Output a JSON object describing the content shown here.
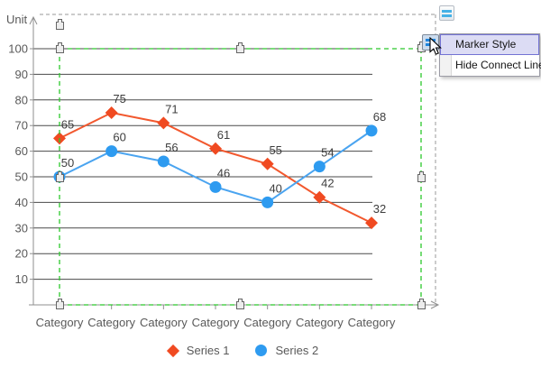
{
  "chart_data": {
    "type": "line",
    "unit_label": "Unit",
    "categories": [
      "Category",
      "Category",
      "Category",
      "Category",
      "Category",
      "Category",
      "Category"
    ],
    "series": [
      {
        "name": "Series 1",
        "marker": "diamond",
        "color": "#F04A21",
        "line_color": "#F2582E",
        "values": [
          65,
          75,
          71,
          61,
          55,
          42,
          32
        ]
      },
      {
        "name": "Series 2",
        "marker": "circle",
        "color": "#2E9BF0",
        "line_color": "#4AA4F0",
        "values": [
          50,
          60,
          56,
          46,
          40,
          54,
          68
        ]
      }
    ],
    "y_ticks": [
      10,
      20,
      30,
      40,
      50,
      60,
      70,
      80,
      90,
      100
    ],
    "ylim": [
      0,
      105
    ],
    "grid": true,
    "data_labels": true,
    "legend_position": "bottom"
  },
  "smart_tag_menu": {
    "items": [
      {
        "label": "Marker Style",
        "highlighted": true
      },
      {
        "label": "Hide Connect Line",
        "highlighted": false
      }
    ]
  },
  "colors": {
    "selection_green": "#2BC82B",
    "outer_dash_gray": "#9A9A9A",
    "grid_line": "#4A4A4A",
    "axis_line": "#8F8F8F",
    "menu_highlight_bg": "#DCDCF4",
    "menu_highlight_border": "#7373D4",
    "text": "#595959"
  }
}
